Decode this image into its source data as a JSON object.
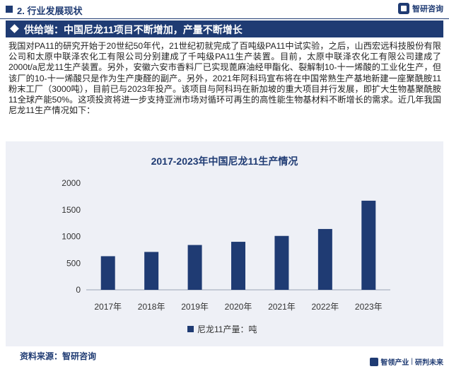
{
  "header": {
    "section": "2. 行业发展现状",
    "brand": "智研咨询"
  },
  "banner": {
    "title": "供给端：中国尼龙11项目不断增加，产量不断增长"
  },
  "paragraph": "我国对PA11的研究开始于20世纪50年代，21世纪初就完成了百吨级PA11中试实验，之后，山西宏远科技股份有限公司和太原中联泽农化工有限公司分别建成了千吨级PA11生产装置。目前，太原中联泽农化工有限公司建成了2000t/a尼龙11生产装置。另外，安徽六安市香料厂已实现蓖麻油经甲酯化、裂解制10-十一烯酸的工业化生产，但该厂的10-十一烯酸只是作为生产庚醛的副产。另外，2021年阿科玛宣布将在中国常熟生产基地新建一座聚酰胺11粉末工厂（3000吨），目前已与2023年投产。该项目与阿科玛在新加坡的重大项目并行发展，即扩大生物基聚酰胺11全球产能50%。这项投资将进一步支持亚洲市场对循环可再生的高性能生物基材料不断增长的需求。近几年我国尼龙11生产情况如下：",
  "chart_data": {
    "type": "bar",
    "title": "2017-2023年中国尼龙11生产情况",
    "categories": [
      "2017年",
      "2018年",
      "2019年",
      "2020年",
      "2021年",
      "2022年",
      "2023年"
    ],
    "series": [
      {
        "name": "尼龙11产量：吨",
        "values": [
          630,
          710,
          840,
          900,
          1010,
          1140,
          1670
        ]
      }
    ],
    "yticks": [
      0,
      500,
      1000,
      1500,
      2000
    ],
    "ylim": [
      0,
      2000
    ],
    "grid": false,
    "legend": "bottom",
    "bar_color": "#1f3b73"
  },
  "source": "资料来源：智研咨询",
  "footer": {
    "left": "智领产业",
    "right": "研判未来"
  }
}
